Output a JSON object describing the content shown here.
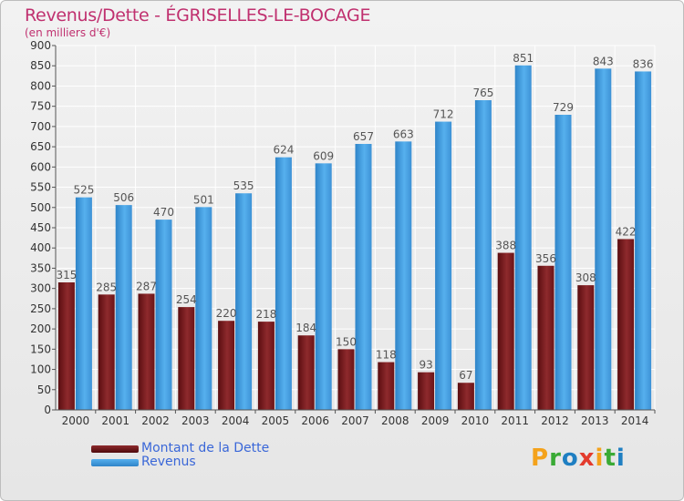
{
  "title": "Revenus/Dette - ÉGRISELLES-LE-BOCAGE",
  "subtitle": "(en milliers d'€)",
  "colors": {
    "debt": "#7a1a1d",
    "revenue": "#4aa3e6",
    "title": "#c0306f",
    "legend_text": "#3a67d8"
  },
  "legend": {
    "debt_label": "Montant de la Dette",
    "revenue_label": "Revenus"
  },
  "logo": {
    "letters": [
      "P",
      "r",
      "o",
      "x",
      "i",
      "t",
      "i"
    ],
    "colors": [
      "#f4a21b",
      "#3aaa35",
      "#1f7fc2",
      "#e33b2d",
      "#f4a21b",
      "#3aaa35",
      "#1f7fc2"
    ]
  },
  "chart_data": {
    "type": "bar",
    "categories": [
      "2000",
      "2001",
      "2002",
      "2003",
      "2004",
      "2005",
      "2006",
      "2007",
      "2008",
      "2009",
      "2010",
      "2011",
      "2012",
      "2013",
      "2014"
    ],
    "series": [
      {
        "name": "Montant de la Dette",
        "values": [
          315,
          285,
          287,
          254,
          220,
          218,
          184,
          150,
          118,
          93,
          67,
          388,
          356,
          308,
          422
        ]
      },
      {
        "name": "Revenus",
        "values": [
          525,
          506,
          470,
          501,
          535,
          624,
          609,
          657,
          663,
          712,
          765,
          851,
          729,
          843,
          836
        ]
      }
    ],
    "title": "Revenus/Dette - ÉGRISELLES-LE-BOCAGE",
    "ylabel": "(en milliers d'€)",
    "ylim": [
      0,
      900
    ],
    "yticks": [
      0,
      50,
      100,
      150,
      200,
      250,
      300,
      350,
      400,
      450,
      500,
      550,
      600,
      650,
      700,
      750,
      800,
      850,
      900
    ],
    "grid": true,
    "legend": "bottom-left"
  }
}
